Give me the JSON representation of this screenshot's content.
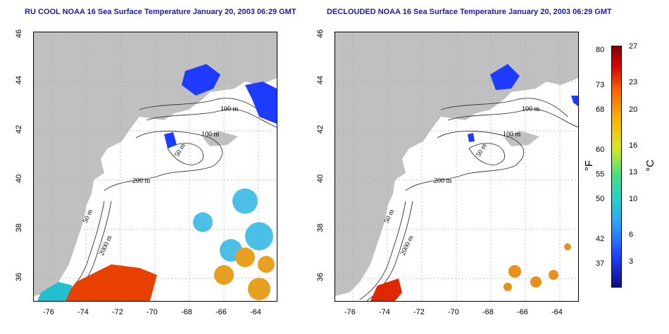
{
  "left_panel": {
    "title": "RU COOL NOAA 16 Sea Surface Temperature January 20, 2003 06:29 GMT"
  },
  "right_panel": {
    "title": "DECLOUDED NOAA 16 Sea Surface Temperature January 20, 2003 06:29 GMT"
  },
  "axes": {
    "x_ticks": [
      "-76",
      "-74",
      "-72",
      "-70",
      "-68",
      "-66",
      "-64"
    ],
    "y_ticks": [
      "46",
      "44",
      "42",
      "40",
      "38",
      "36"
    ]
  },
  "contours": {
    "c100_upper": "100 m",
    "c100_lower": "100 m",
    "c50_gulf": "50 m",
    "c200": "200 m",
    "c50_shelf": "50 m",
    "c2000": "2000 m"
  },
  "colorbar": {
    "fahrenheit_unit": "°F",
    "celsius_unit": "°C",
    "fahrenheit_ticks": [
      "80",
      "73",
      "68",
      "60",
      "55",
      "50",
      "42",
      "37"
    ],
    "celsius_ticks": [
      "27",
      "23",
      "20",
      "16",
      "13",
      "10",
      "6",
      "3"
    ]
  },
  "colors": {
    "land": "#c0c0c0",
    "title": "#1a1aa6",
    "cold": "#1e3cff",
    "warm": "#e84000"
  }
}
